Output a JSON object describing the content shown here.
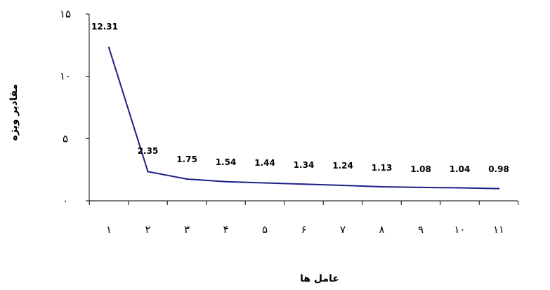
{
  "chart_data": {
    "type": "line",
    "categories": [
      "١",
      "٢",
      "٣",
      "۴",
      "۵",
      "۶",
      "٧",
      "٨",
      "٩",
      "١٠",
      "١١"
    ],
    "series": [
      {
        "values": [
          12.31,
          2.35,
          1.75,
          1.54,
          1.44,
          1.34,
          1.24,
          1.13,
          1.08,
          1.04,
          0.98
        ]
      }
    ],
    "data_labels": [
      "12.31",
      "2.35",
      "1.75",
      "1.54",
      "1.44",
      "1.34",
      "1.24",
      "1.13",
      "1.08",
      "1.04",
      "0.98"
    ],
    "y_ticks": [
      0,
      5,
      10,
      15
    ],
    "y_tick_labels": [
      "٠",
      "۵",
      "١٠",
      "١۵"
    ],
    "ylim": [
      0,
      15
    ],
    "xlabel": "عامل ها",
    "ylabel": "مقادیر ویژه",
    "grid": false,
    "line_color": "#1f1f8a"
  }
}
